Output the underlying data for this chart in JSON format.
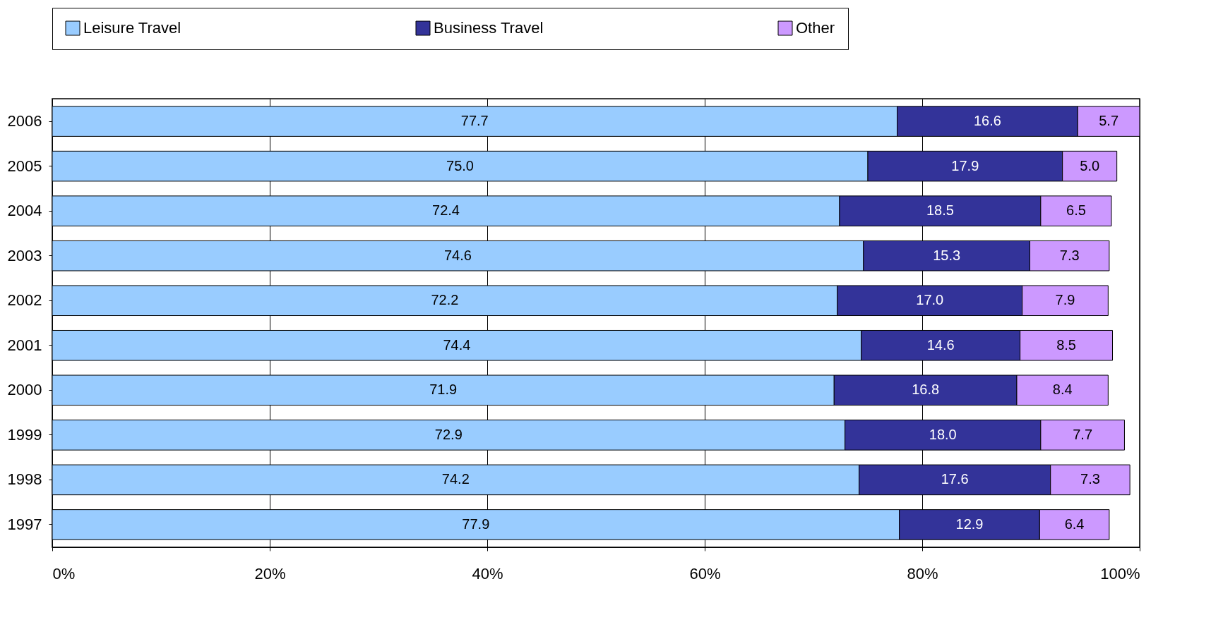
{
  "chart_data": {
    "type": "bar",
    "orientation": "horizontal",
    "stacked": true,
    "grid": "x",
    "legend": "top",
    "categories": [
      "2006",
      "2005",
      "2004",
      "2003",
      "2002",
      "2001",
      "2000",
      "1999",
      "1998",
      "1997"
    ],
    "series": [
      {
        "name": "Leisure Travel",
        "color": "#99ccff",
        "values": [
          77.7,
          75.0,
          72.4,
          74.6,
          72.2,
          74.4,
          71.9,
          72.9,
          74.2,
          77.9
        ],
        "value_labels": [
          "77.7",
          "75.0",
          "72.4",
          "74.6",
          "72.2",
          "74.4",
          "71.9",
          "72.9",
          "74.2",
          "77.9"
        ]
      },
      {
        "name": "Business Travel",
        "color": "#333399",
        "values": [
          16.6,
          17.9,
          18.5,
          15.3,
          17.0,
          14.6,
          16.8,
          18.0,
          17.6,
          12.9
        ],
        "value_labels": [
          "16.6",
          "17.9",
          "18.5",
          "15.3",
          "17.0",
          "14.6",
          "16.8",
          "18.0",
          "17.6",
          "12.9"
        ]
      },
      {
        "name": "Other",
        "color": "#cc99ff",
        "values": [
          5.7,
          5.0,
          6.5,
          7.3,
          7.9,
          8.5,
          8.4,
          7.7,
          7.3,
          6.4
        ],
        "value_labels": [
          "5.7",
          "5.0",
          "6.5",
          "7.3",
          "7.9",
          "8.5",
          "8.4",
          "7.7",
          "7.3",
          "6.4"
        ]
      }
    ],
    "xlim": [
      0,
      100
    ],
    "xticks": [
      {
        "value": 0,
        "label": "0%"
      },
      {
        "value": 20,
        "label": "20%"
      },
      {
        "value": 40,
        "label": "40%"
      },
      {
        "value": 60,
        "label": "60%"
      },
      {
        "value": 80,
        "label": "80%"
      },
      {
        "value": 100,
        "label": "100%"
      }
    ]
  }
}
